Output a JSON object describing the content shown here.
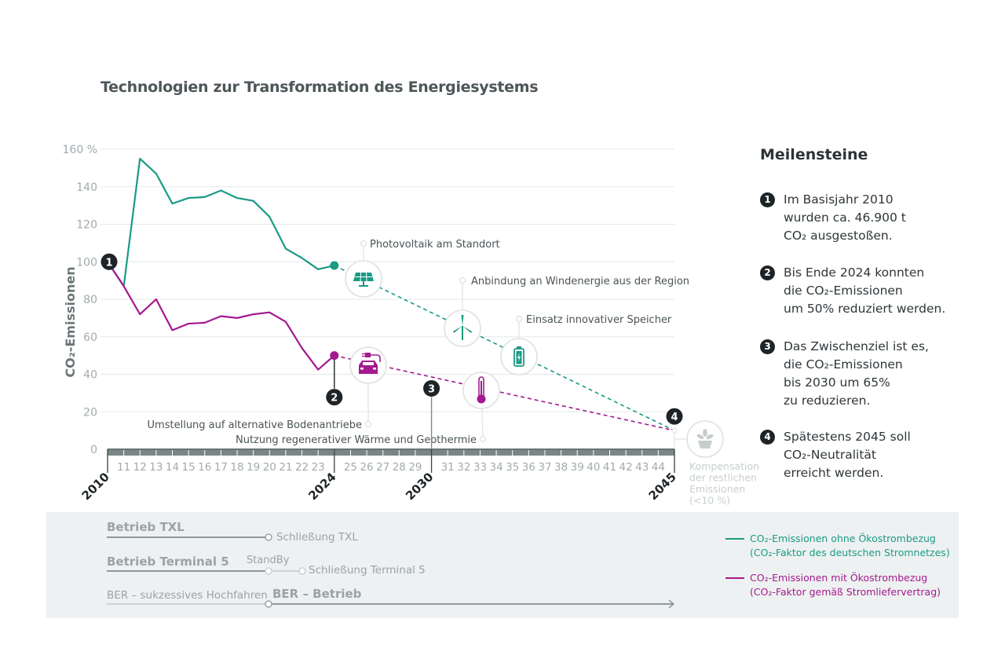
{
  "title": "Technologien zur Transformation des Energiesystems",
  "milestones": {
    "heading": "Meilensteine",
    "items": [
      {
        "num": "1",
        "text": "Im Basisjahr 2010\nwurden ca. 46.900 t\nCO₂ ausgestoßen."
      },
      {
        "num": "2",
        "text": "Bis Ende 2024 konnten\ndie CO₂-Emissionen\num 50% reduziert werden."
      },
      {
        "num": "3",
        "text": "Das Zwischenziel ist es,\ndie CO₂-Emissionen\nbis 2030 um 65%\nzu reduzieren."
      },
      {
        "num": "4",
        "text": "Spätestens 2045 soll\nCO₂-Neutralität\nerreicht werden."
      }
    ]
  },
  "colors": {
    "teal": "#1a9a84",
    "magenta": "#a3198f",
    "grid": "#e3e7e8",
    "axis_text": "#a3aaad",
    "axis_bar": "#7a8587",
    "marker": "#1d2326",
    "icon_circle": "#dde2e3",
    "faded": "#c8cecf"
  },
  "timeline": {
    "rows": [
      {
        "label": "Betrieb TXL",
        "end_label": "Schließung TXL"
      },
      {
        "label": "Betrieb Terminal 5",
        "mid_label": "StandBy",
        "end_label": "Schließung Terminal 5"
      },
      {
        "label": "BER – sukzessives Hochfahren",
        "next_label": "BER – Betrieb"
      }
    ]
  },
  "legend": [
    {
      "text": "CO₂-Emissionen ohne Ökostrombezug\n(CO₂-Faktor des deutschen Stromnetzes)",
      "color": "#1a9a84"
    },
    {
      "text": "CO₂-Emissionen mit Ökostrombezug\n(CO₂-Faktor gemäß Stromliefervertrag)",
      "color": "#a3198f"
    }
  ],
  "chart_data": {
    "type": "line",
    "title": "Technologien zur Transformation des Energiesystems",
    "xlabel": "",
    "ylabel": "CO₂-Emissionen",
    "ylim": [
      0,
      160
    ],
    "xlim": [
      2010,
      2045
    ],
    "y_ticks": [
      "0",
      "20",
      "40",
      "60",
      "80",
      "100",
      "120",
      "140",
      "160 %"
    ],
    "y_tick_values": [
      0,
      20,
      40,
      60,
      80,
      100,
      120,
      140,
      160
    ],
    "x_major_labels": [
      {
        "year": 2010,
        "label": "2010"
      },
      {
        "year": 2024,
        "label": "2024"
      },
      {
        "year": 2030,
        "label": "2030"
      },
      {
        "year": 2045,
        "label": "2045"
      }
    ],
    "x_minor_labels": [
      "11",
      "12",
      "13",
      "14",
      "15",
      "16",
      "17",
      "18",
      "19",
      "20",
      "21",
      "22",
      "23",
      "25",
      "26",
      "27",
      "28",
      "29",
      "31",
      "32",
      "33",
      "34",
      "35",
      "36",
      "37",
      "38",
      "39",
      "40",
      "41",
      "42",
      "43",
      "44"
    ],
    "grid": true,
    "series": [
      {
        "name": "CO₂-Emissionen ohne Ökostrombezug",
        "color": "#1a9a84",
        "x": [
          2010,
          2011,
          2012,
          2013,
          2014,
          2015,
          2016,
          2017,
          2018,
          2019,
          2020,
          2021,
          2022,
          2023,
          2024
        ],
        "values": [
          100,
          87,
          155,
          147,
          131,
          134,
          134.5,
          138,
          134,
          132.5,
          124,
          107,
          102,
          96,
          98
        ],
        "projection": {
          "x": [
            2024,
            2045
          ],
          "values": [
            98,
            10
          ]
        }
      },
      {
        "name": "CO₂-Emissionen mit Ökostrombezug",
        "color": "#a3198f",
        "x": [
          2010,
          2011,
          2012,
          2013,
          2014,
          2015,
          2016,
          2017,
          2018,
          2019,
          2020,
          2021,
          2022,
          2023,
          2024
        ],
        "values": [
          100,
          87,
          72,
          80,
          63.5,
          67,
          67.5,
          71,
          70,
          72,
          73,
          68,
          54,
          42.5,
          50
        ],
        "projection": {
          "x": [
            2024,
            2045
          ],
          "values": [
            50,
            10
          ]
        }
      }
    ],
    "milestone_markers": [
      {
        "num": "1",
        "year": 2010,
        "value": 100
      },
      {
        "num": "2",
        "year": 2024,
        "value": 50
      },
      {
        "num": "3",
        "year": 2030,
        "value": 35
      },
      {
        "num": "4",
        "year": 2045,
        "value": 10
      }
    ],
    "annotations": [
      {
        "label": "Photovoltaik am Standort",
        "icon": "solar-panel-icon",
        "series": "teal",
        "year": 2026
      },
      {
        "label": "Anbindung an Windenergie aus der Region",
        "icon": "wind-turbine-icon",
        "series": "teal",
        "year": 2032
      },
      {
        "label": "Einsatz innovativer Speicher",
        "icon": "battery-icon",
        "series": "teal",
        "year": 2035
      },
      {
        "label": "Umstellung auf alternative Bodenantriebe",
        "icon": "electric-car-icon",
        "series": "magenta",
        "year": 2026
      },
      {
        "label": "Nutzung regenerativer Wärme und Geothermie",
        "icon": "thermometer-icon",
        "series": "magenta",
        "year": 2033
      },
      {
        "label": "Kompensation\nder restlichen\nEmissionen\n(<10 %)",
        "icon": "plant-icon",
        "series": "both",
        "year": 2045
      }
    ]
  }
}
